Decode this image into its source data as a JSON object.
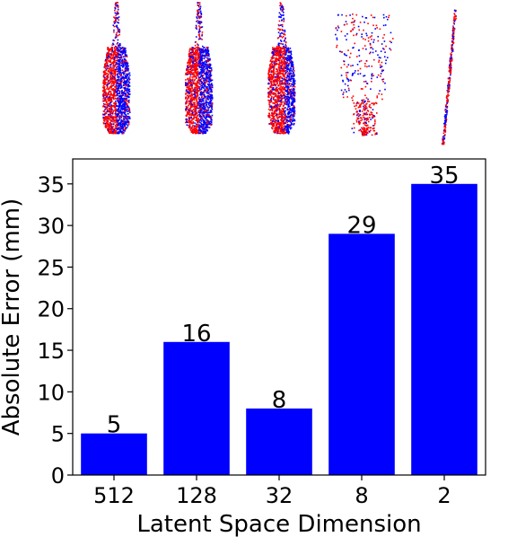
{
  "chart_data": {
    "type": "bar",
    "categories": [
      "512",
      "128",
      "32",
      "8",
      "2"
    ],
    "values": [
      5,
      16,
      8,
      29,
      35
    ],
    "data_labels": [
      "5",
      "16",
      "8",
      "29",
      "35"
    ],
    "xlabel": "Latent Space Dimension",
    "ylabel": "Absolute Error (mm)",
    "ylim": [
      0,
      38
    ],
    "yticks": [
      0,
      5,
      10,
      15,
      20,
      25,
      30,
      35
    ],
    "grid": false,
    "legend": "none",
    "bar_color": "#0000ff",
    "reconstruction_thumbnails": [
      "512",
      "128",
      "32",
      "8",
      "2"
    ]
  },
  "colors": {
    "series_a": "#ff0000",
    "series_b": "#0000ff"
  }
}
